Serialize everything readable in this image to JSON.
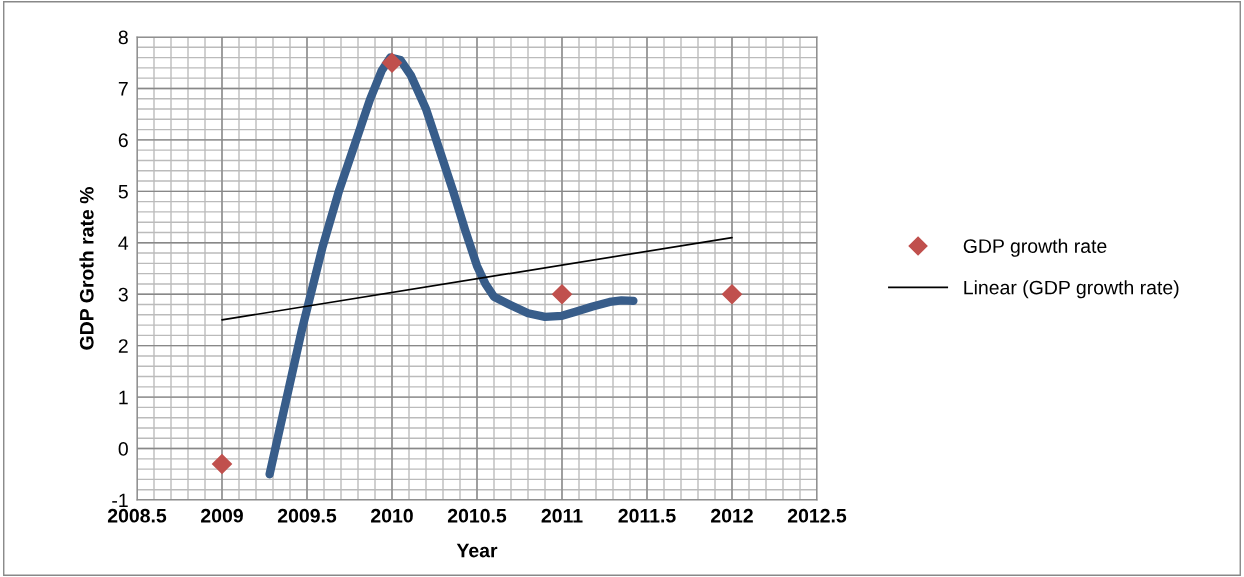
{
  "chart_data": {
    "type": "scatter",
    "xlabel": "Year",
    "ylabel": "GDP Groth rate %",
    "xlim": [
      2008.5,
      2012.5
    ],
    "xticks": [
      2008.5,
      2009,
      2009.5,
      2010,
      2010.5,
      2011,
      2011.5,
      2012,
      2012.5
    ],
    "ylim": [
      -1,
      8
    ],
    "yticks": [
      -1,
      0,
      1,
      2,
      3,
      4,
      5,
      6,
      7,
      8
    ],
    "grid": true,
    "legend": "right",
    "series": [
      {
        "type": "line",
        "color": "#385d8a",
        "marker": "none",
        "x": [
          2009.28,
          2009.47,
          2009.59,
          2009.69,
          2009.79,
          2009.87,
          2009.94,
          2009.99,
          2010.05,
          2010.11,
          2010.2,
          2010.28,
          2010.36,
          2010.43,
          2010.5,
          2010.55,
          2010.6,
          2010.69,
          2010.8,
          2010.9,
          2011.0,
          2011.08,
          2011.18,
          2011.28,
          2011.35,
          2011.42
        ],
        "values": [
          -0.5,
          2.31,
          3.9,
          5.03,
          6.0,
          6.78,
          7.35,
          7.6,
          7.55,
          7.26,
          6.6,
          5.8,
          5.0,
          4.25,
          3.55,
          3.2,
          2.95,
          2.8,
          2.63,
          2.56,
          2.58,
          2.66,
          2.76,
          2.85,
          2.88,
          2.87
        ]
      },
      {
        "name": "GDP growth rate",
        "color": "#c0504d",
        "marker": "diamond",
        "x": [
          2009,
          2010,
          2011,
          2012
        ],
        "values": [
          -0.3,
          7.5,
          3,
          3
        ]
      },
      {
        "type": "line",
        "name": "Linear (GDP growth rate)",
        "color": "#000000",
        "marker": "none",
        "x": [
          2009,
          2012
        ],
        "values": [
          2.5,
          4.1
        ]
      }
    ]
  }
}
